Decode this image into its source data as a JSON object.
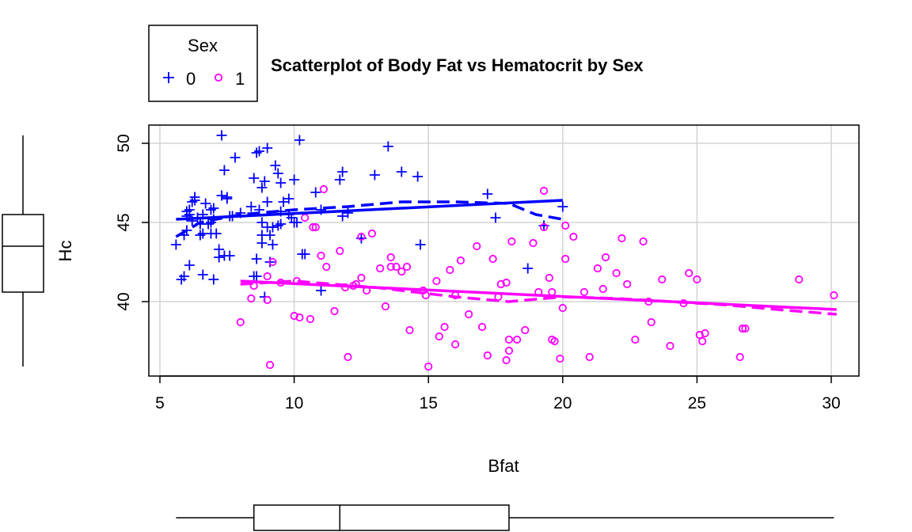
{
  "chart_data": {
    "type": "scatter",
    "title": "Scatterplot of Body Fat vs Hematocrit by Sex",
    "xlabel": "Bfat",
    "ylabel": "Hc",
    "xlim": [
      5,
      31
    ],
    "ylim": [
      35.5,
      51.2
    ],
    "xticks": [
      5,
      10,
      15,
      20,
      25,
      30
    ],
    "yticks": [
      40,
      45,
      50
    ],
    "grid": true,
    "legend": {
      "title": "Sex",
      "position": "top-left",
      "entries": [
        "0",
        "1"
      ]
    },
    "series": [
      {
        "name": "0",
        "color": "#0000FF",
        "marker": "plus",
        "x": [
          5.6,
          5.8,
          5.9,
          6.0,
          6.1,
          6.2,
          6.3,
          6.4,
          6.5,
          6.6,
          6.7,
          6.8,
          6.9,
          7.0,
          7.1,
          7.2,
          7.3,
          7.4,
          7.5,
          7.6,
          7.8,
          8.0,
          8.5,
          8.6,
          8.7,
          8.8,
          8.9,
          9.0,
          9.1,
          9.2,
          9.3,
          9.4,
          9.5,
          9.6,
          9.8,
          10.0,
          10.1,
          10.2,
          10.3,
          10.8,
          11.0,
          11.7,
          11.8,
          12.0,
          13.0,
          13.5,
          14.0,
          14.6,
          14.7,
          17.2,
          17.5,
          18.7,
          19.3,
          20.0,
          7.3,
          6.0,
          5.9,
          6.1,
          6.6,
          7.0,
          8.5,
          8.6,
          8.7,
          8.8,
          9.0,
          9.2,
          9.5,
          9.9,
          7.2,
          7.6,
          8.9,
          9.0,
          7.4,
          8.6,
          9.5,
          10.0,
          6.2,
          6.5,
          12.5,
          6.0,
          8.8,
          11.8,
          6.3,
          6.9,
          7.5,
          9.1,
          6.1,
          7.0,
          8.4,
          9.8,
          10.4,
          11.0,
          7.7,
          6.6,
          6.9,
          8.8,
          9.4
        ],
        "y": [
          43.6,
          41.4,
          44.2,
          45.4,
          45.8,
          46.3,
          46.6,
          45.3,
          44.9,
          45.5,
          46.2,
          44.9,
          45.8,
          45.2,
          44.3,
          43.3,
          50.5,
          48.3,
          46.5,
          42.9,
          49.1,
          45.6,
          47.8,
          49.4,
          49.5,
          47.2,
          47.6,
          49.7,
          44.2,
          44.7,
          48.6,
          48.1,
          47.5,
          46.3,
          46.5,
          47.7,
          45.0,
          50.2,
          43.0,
          46.9,
          45.8,
          47.7,
          48.2,
          45.6,
          48.0,
          49.8,
          48.2,
          47.9,
          43.6,
          46.8,
          45.3,
          42.1,
          44.8,
          46.0,
          46.7,
          44.5,
          41.6,
          42.3,
          41.7,
          41.4,
          41.6,
          42.7,
          45.8,
          45.0,
          44.7,
          43.6,
          44.9,
          45.3,
          42.8,
          45.4,
          40.3,
          46.3,
          42.9,
          41.6,
          45.7,
          45.0,
          45.1,
          44.2,
          44.0,
          45.7,
          43.7,
          45.4,
          46.4,
          44.3,
          46.6,
          42.5,
          45.5,
          45.9,
          46.0,
          45.5,
          43.0,
          40.7,
          45.4,
          44.3,
          45.0,
          44.2,
          44.8
        ]
      },
      {
        "name": "1",
        "color": "#FF00FF",
        "marker": "circle",
        "x": [
          8.0,
          8.5,
          9.0,
          9.1,
          9.5,
          10.0,
          10.2,
          10.4,
          10.6,
          10.8,
          11.0,
          11.2,
          11.5,
          11.7,
          12.0,
          12.2,
          12.5,
          12.7,
          12.9,
          13.2,
          13.4,
          13.6,
          14.0,
          14.3,
          14.8,
          15.0,
          15.3,
          15.6,
          16.0,
          16.2,
          16.5,
          16.8,
          17.0,
          17.2,
          17.4,
          17.7,
          17.9,
          18.1,
          18.3,
          18.6,
          18.9,
          19.1,
          19.3,
          19.5,
          19.7,
          19.9,
          20.0,
          20.1,
          20.4,
          21.0,
          21.3,
          21.6,
          22.0,
          22.4,
          22.7,
          23.0,
          23.3,
          23.7,
          24.0,
          24.7,
          25.0,
          25.2,
          25.3,
          26.6,
          26.7,
          26.8,
          28.8,
          30.1,
          11.9,
          10.7,
          12.3,
          9.0,
          17.6,
          13.8,
          15.8,
          18.0,
          19.6,
          21.5,
          23.2,
          26.7,
          25.1,
          15.4,
          17.9,
          20.1,
          12.5,
          11.1,
          13.6,
          14.9,
          19.3,
          8.4,
          9.2,
          10.1,
          18.0,
          22.2,
          19.6,
          16.0,
          14.2,
          24.5,
          20.8
        ],
        "y": [
          38.7,
          41.0,
          40.1,
          36.0,
          41.2,
          39.1,
          39.0,
          45.3,
          38.9,
          44.7,
          42.9,
          42.2,
          39.4,
          43.2,
          36.5,
          41.0,
          44.1,
          40.7,
          44.3,
          42.1,
          39.7,
          42.8,
          41.9,
          38.2,
          40.7,
          35.9,
          41.3,
          38.4,
          37.3,
          42.6,
          39.2,
          43.5,
          38.4,
          36.6,
          42.7,
          41.1,
          36.3,
          43.8,
          37.6,
          38.2,
          43.7,
          40.6,
          44.7,
          41.5,
          37.5,
          36.4,
          39.6,
          42.7,
          44.1,
          36.5,
          42.1,
          42.8,
          41.8,
          41.1,
          37.6,
          43.8,
          38.7,
          41.4,
          37.2,
          41.8,
          41.4,
          37.5,
          38.0,
          36.5,
          38.3,
          38.3,
          41.4,
          40.4,
          40.9,
          44.7,
          41.1,
          41.6,
          40.3,
          42.2,
          42.0,
          36.9,
          40.6,
          40.8,
          40.0,
          38.3,
          37.9,
          37.8,
          41.2,
          44.8,
          41.5,
          47.1,
          42.2,
          40.4,
          47.0,
          40.2,
          42.5,
          41.3,
          37.6,
          44.0,
          37.6,
          40.4,
          42.2,
          39.9,
          40.6
        ]
      }
    ],
    "fit_lines": [
      {
        "series": "0",
        "type": "linear",
        "style": "solid",
        "x": [
          5.6,
          20.0
        ],
        "y": [
          45.2,
          46.4
        ]
      },
      {
        "series": "0",
        "type": "smooth",
        "style": "dashed",
        "x": [
          5.6,
          6.5,
          8.0,
          10.0,
          12.0,
          14.0,
          16.0,
          18.0,
          19.0,
          20.0
        ],
        "y": [
          44.1,
          45.0,
          45.5,
          45.8,
          46.0,
          46.3,
          46.3,
          46.2,
          45.5,
          45.2
        ]
      },
      {
        "series": "1",
        "type": "linear",
        "style": "solid",
        "x": [
          8.0,
          30.2
        ],
        "y": [
          41.3,
          39.5
        ]
      },
      {
        "series": "1",
        "type": "smooth",
        "style": "dashed",
        "x": [
          8.0,
          10.0,
          13.0,
          16.0,
          18.0,
          20.0,
          22.0,
          24.0,
          26.0,
          28.0,
          30.2
        ],
        "y": [
          41.1,
          41.3,
          40.9,
          40.3,
          40.0,
          40.3,
          40.2,
          40.0,
          39.8,
          39.5,
          39.2
        ]
      }
    ],
    "marginal_boxplots": {
      "y": {
        "min": 35.9,
        "q1": 40.6,
        "median": 43.5,
        "q3": 45.5,
        "max": 50.5
      },
      "x": {
        "min": 5.6,
        "q1": 8.5,
        "median": 11.7,
        "q3": 18.0,
        "max": 30.1
      }
    }
  }
}
